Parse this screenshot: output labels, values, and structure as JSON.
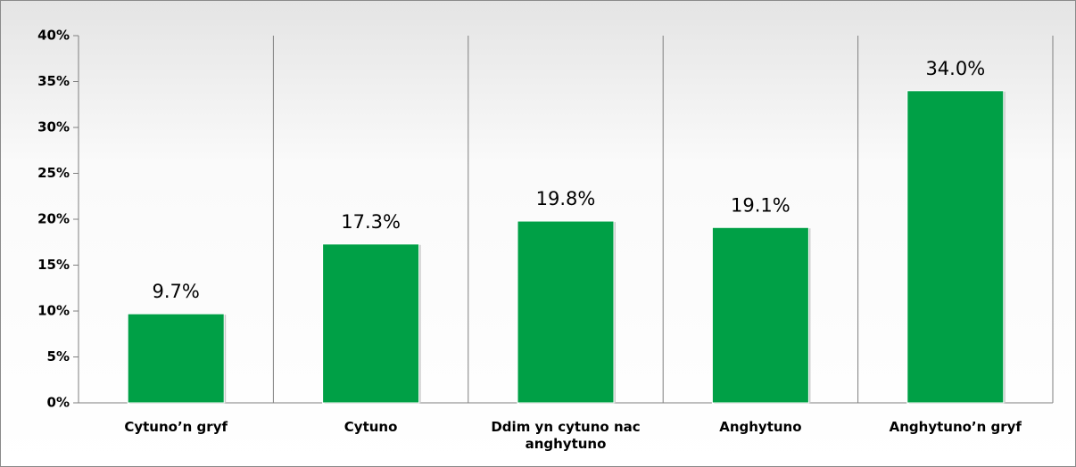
{
  "chart_data": {
    "type": "bar",
    "categories": [
      "Cytuno’n gryf",
      "Cytuno",
      "Ddim yn cytuno nac anghytuno",
      "Anghytuno",
      "Anghytuno’n gryf"
    ],
    "values": [
      9.7,
      17.3,
      19.8,
      19.1,
      34.0
    ],
    "value_labels": [
      "9.7%",
      "17.3%",
      "19.8%",
      "19.1%",
      "34.0%"
    ],
    "color": "#00a046",
    "ylim": [
      0,
      40
    ],
    "yticks": [
      {
        "value": 0,
        "label": "0%"
      },
      {
        "value": 5,
        "label": "5%"
      },
      {
        "value": 10,
        "label": "10%"
      },
      {
        "value": 15,
        "label": "15%"
      },
      {
        "value": 20,
        "label": "20%"
      },
      {
        "value": 25,
        "label": "25%"
      },
      {
        "value": 30,
        "label": "30%"
      },
      {
        "value": 35,
        "label": "35%"
      },
      {
        "value": 40,
        "label": "40%"
      }
    ],
    "grid": false
  }
}
